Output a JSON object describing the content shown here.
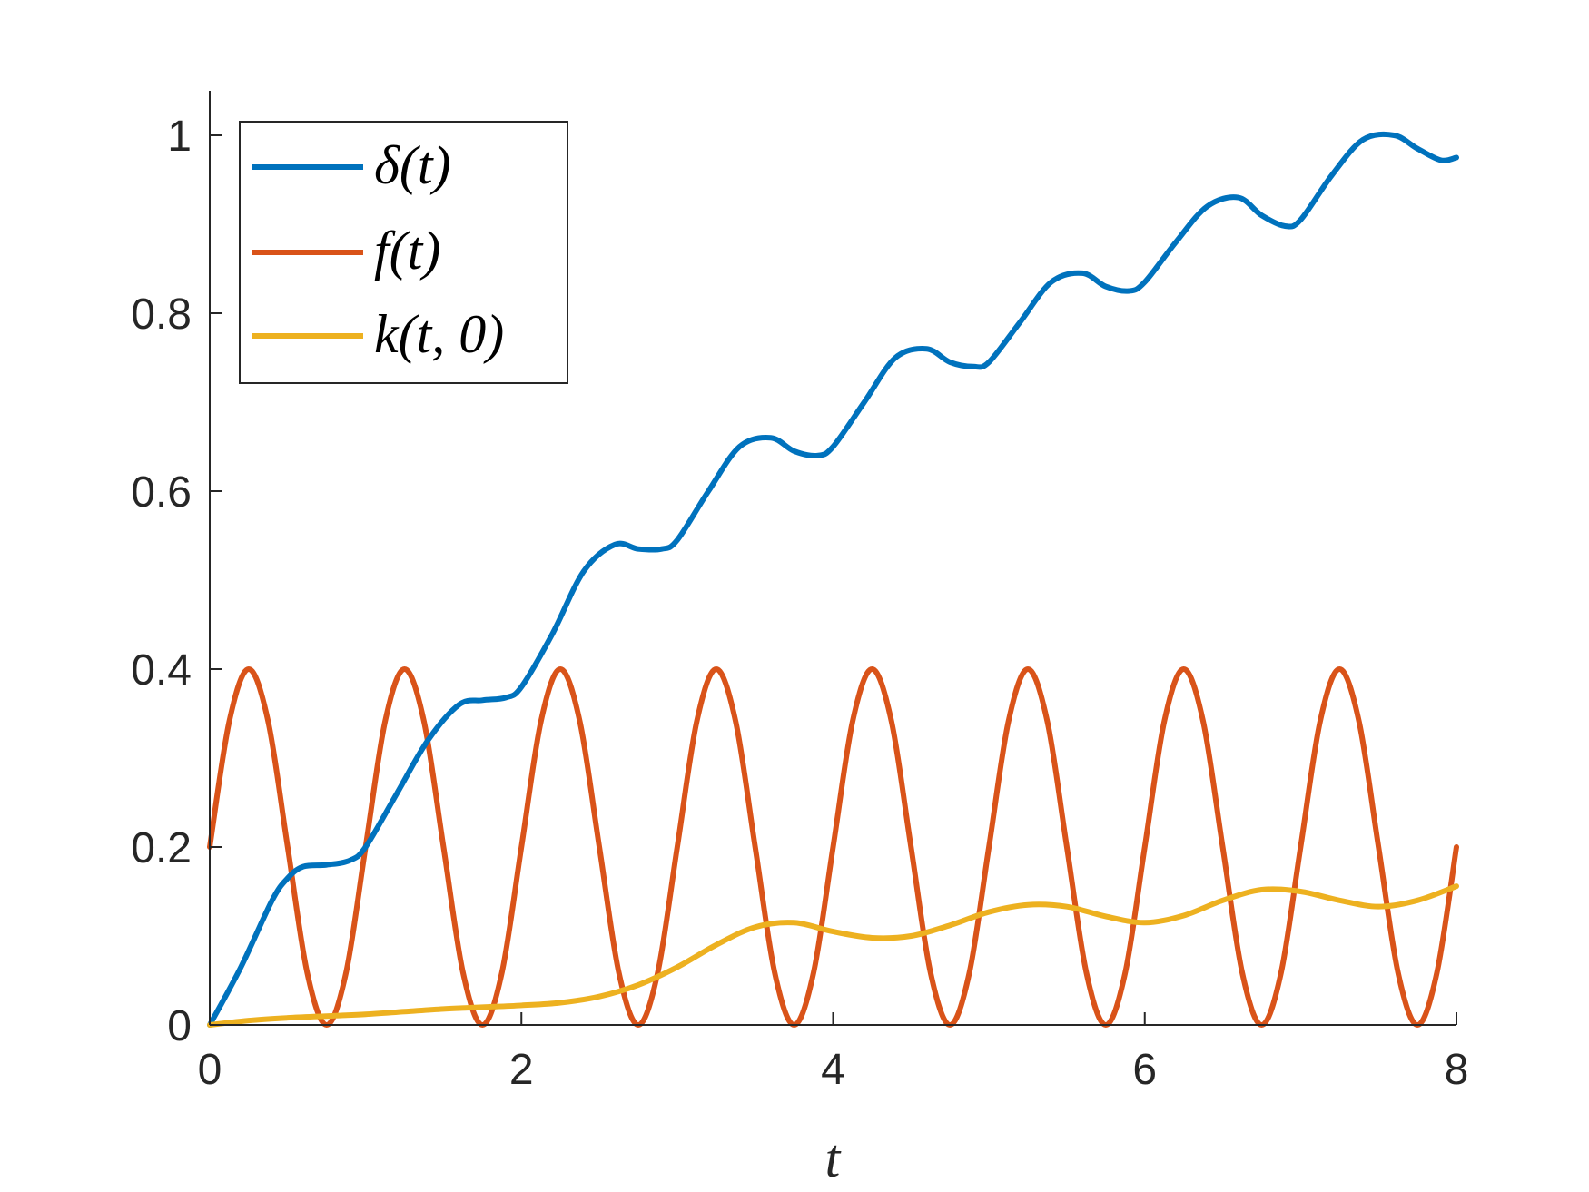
{
  "chart_data": {
    "type": "line",
    "xlabel": "t",
    "ylabel": "",
    "xlim": [
      0,
      8
    ],
    "ylim": [
      0,
      1.05
    ],
    "xticks": [
      0,
      2,
      4,
      6,
      8
    ],
    "yticks": [
      0,
      0.2,
      0.4,
      0.6,
      0.8,
      1
    ],
    "xtick_labels": [
      "0",
      "2",
      "4",
      "6",
      "8"
    ],
    "ytick_labels": [
      "0",
      "0.2",
      "0.4",
      "0.6",
      "0.8",
      "1"
    ],
    "grid": false,
    "legend_position": "top-left",
    "series": [
      {
        "name": "δ(t)",
        "color": "#0072BD",
        "x": [
          0,
          0.2,
          0.4,
          0.5,
          0.6,
          0.75,
          0.9,
          1.0,
          1.2,
          1.4,
          1.6,
          1.75,
          1.9,
          2.0,
          2.2,
          2.4,
          2.6,
          2.75,
          2.9,
          3.0,
          3.2,
          3.4,
          3.6,
          3.75,
          3.9,
          4.0,
          4.2,
          4.4,
          4.6,
          4.75,
          4.9,
          5.0,
          5.2,
          5.4,
          5.6,
          5.75,
          5.9,
          6.0,
          6.2,
          6.4,
          6.6,
          6.75,
          6.9,
          7.0,
          7.2,
          7.4,
          7.6,
          7.75,
          7.9,
          8.0
        ],
        "y": [
          0,
          0.065,
          0.14,
          0.165,
          0.178,
          0.18,
          0.185,
          0.2,
          0.26,
          0.32,
          0.36,
          0.365,
          0.368,
          0.38,
          0.44,
          0.51,
          0.54,
          0.535,
          0.535,
          0.545,
          0.6,
          0.65,
          0.66,
          0.645,
          0.64,
          0.65,
          0.7,
          0.75,
          0.76,
          0.745,
          0.74,
          0.745,
          0.79,
          0.835,
          0.845,
          0.83,
          0.825,
          0.835,
          0.88,
          0.92,
          0.93,
          0.91,
          0.898,
          0.905,
          0.955,
          0.995,
          1.0,
          0.985,
          0.972,
          0.975
        ]
      },
      {
        "name": "f(t)",
        "color": "#D95319",
        "x": [
          0,
          0.125,
          0.25,
          0.375,
          0.5,
          0.625,
          0.75,
          0.875,
          1.0,
          1.125,
          1.25,
          1.375,
          1.5,
          1.625,
          1.75,
          1.875,
          2.0,
          2.125,
          2.25,
          2.375,
          2.5,
          2.625,
          2.75,
          2.875,
          3.0,
          3.125,
          3.25,
          3.375,
          3.5,
          3.625,
          3.75,
          3.875,
          4.0,
          4.125,
          4.25,
          4.375,
          4.5,
          4.625,
          4.75,
          4.875,
          5.0,
          5.125,
          5.25,
          5.375,
          5.5,
          5.625,
          5.75,
          5.875,
          6.0,
          6.125,
          6.25,
          6.375,
          6.5,
          6.625,
          6.75,
          6.875,
          7.0,
          7.125,
          7.25,
          7.375,
          7.5,
          7.625,
          7.75,
          7.875,
          8.0
        ],
        "y": [
          0.2,
          0.341,
          0.4,
          0.341,
          0.2,
          0.059,
          0,
          0.059,
          0.2,
          0.341,
          0.4,
          0.341,
          0.2,
          0.059,
          0,
          0.059,
          0.2,
          0.341,
          0.4,
          0.341,
          0.2,
          0.059,
          0,
          0.059,
          0.2,
          0.341,
          0.4,
          0.341,
          0.2,
          0.059,
          0,
          0.059,
          0.2,
          0.341,
          0.4,
          0.341,
          0.2,
          0.059,
          0,
          0.059,
          0.2,
          0.341,
          0.4,
          0.341,
          0.2,
          0.059,
          0,
          0.059,
          0.2,
          0.341,
          0.4,
          0.341,
          0.2,
          0.059,
          0,
          0.059,
          0.2,
          0.341,
          0.4,
          0.341,
          0.2,
          0.059,
          0,
          0.059,
          0.2
        ]
      },
      {
        "name": "k(t, 0)",
        "color": "#EDB120",
        "x": [
          0,
          0.25,
          0.5,
          0.75,
          1.0,
          1.25,
          1.5,
          1.75,
          2.0,
          2.25,
          2.5,
          2.75,
          3.0,
          3.25,
          3.5,
          3.75,
          4.0,
          4.25,
          4.5,
          4.75,
          5.0,
          5.25,
          5.5,
          5.75,
          6.0,
          6.25,
          6.5,
          6.75,
          7.0,
          7.25,
          7.5,
          7.75,
          8.0
        ],
        "y": [
          0,
          0.005,
          0.008,
          0.01,
          0.012,
          0.015,
          0.018,
          0.02,
          0.022,
          0.025,
          0.032,
          0.045,
          0.065,
          0.09,
          0.11,
          0.115,
          0.105,
          0.098,
          0.1,
          0.112,
          0.127,
          0.135,
          0.133,
          0.122,
          0.115,
          0.123,
          0.14,
          0.152,
          0.15,
          0.14,
          0.133,
          0.14,
          0.156
        ]
      }
    ]
  }
}
